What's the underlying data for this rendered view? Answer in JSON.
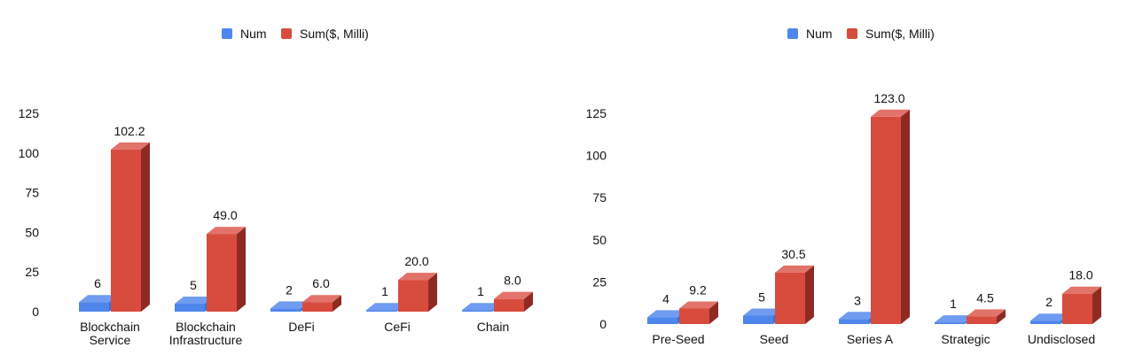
{
  "colors": {
    "num": "#4f86ec",
    "num_top": "#6f9cf0",
    "num_side": "#3b6fd0",
    "sum": "#d84c3e",
    "sum_top": "#e2736a",
    "sum_side": "#8f2a22"
  },
  "chart_data": [
    {
      "type": "bar",
      "title": "",
      "xlabel": "",
      "ylabel": "",
      "ylim": [
        0,
        125
      ],
      "yticks": [
        0,
        25,
        50,
        75,
        100,
        125
      ],
      "legend": "top",
      "grid": false,
      "categories": [
        "Blockchain\nService",
        "Blockchain\nInfrastructure",
        "DeFi",
        "CeFi",
        "Chain"
      ],
      "series": [
        {
          "name": "Num",
          "values": [
            6,
            5,
            2,
            1,
            1
          ],
          "labels": [
            "6",
            "5",
            "2",
            "1",
            "1"
          ]
        },
        {
          "name": "Sum($, Milli)",
          "values": [
            102.2,
            49.0,
            6.0,
            20.0,
            8.0
          ],
          "labels": [
            "102.2",
            "49.0",
            "6.0",
            "20.0",
            "8.0"
          ]
        }
      ]
    },
    {
      "type": "bar",
      "title": "",
      "xlabel": "",
      "ylabel": "",
      "ylim": [
        0,
        125
      ],
      "yticks": [
        0,
        25,
        50,
        75,
        100,
        125
      ],
      "legend": "top",
      "grid": false,
      "categories": [
        "Pre-Seed",
        "Seed",
        "Series A",
        "Strategic",
        "Undisclosed"
      ],
      "series": [
        {
          "name": "Num",
          "values": [
            4,
            5,
            3,
            1,
            2
          ],
          "labels": [
            "4",
            "5",
            "3",
            "1",
            "2"
          ]
        },
        {
          "name": "Sum($, Milli)",
          "values": [
            9.2,
            30.5,
            123.0,
            4.5,
            18.0
          ],
          "labels": [
            "9.2",
            "30.5",
            "123.0",
            "4.5",
            "18.0"
          ]
        }
      ]
    }
  ]
}
